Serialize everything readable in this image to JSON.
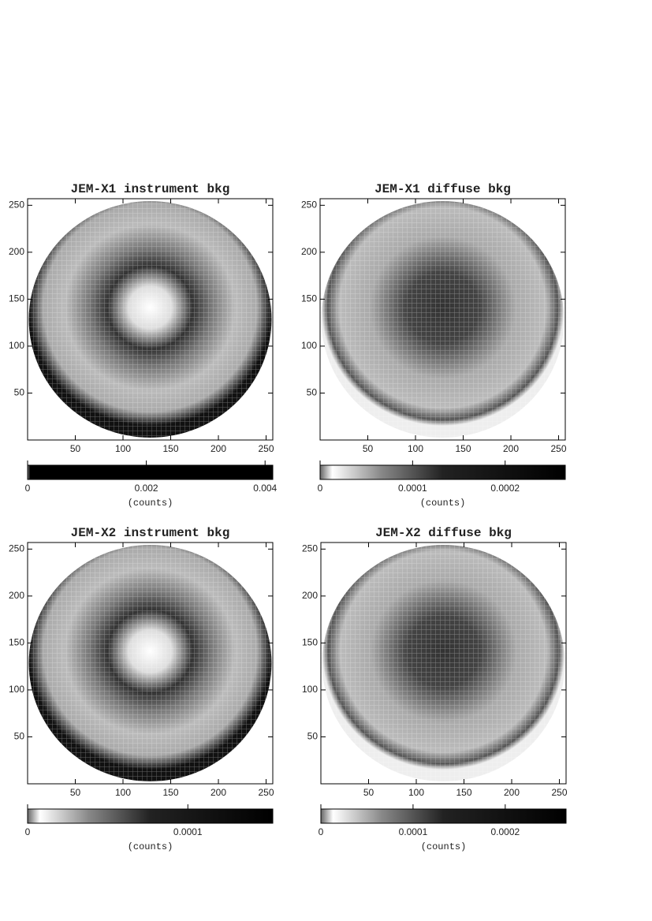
{
  "chart_data": [
    {
      "type": "image",
      "title": "JEM-X1 instrument bkg",
      "xlim": [
        0,
        257
      ],
      "ylim": [
        0,
        257
      ],
      "xticks": [
        50,
        100,
        150,
        200,
        250
      ],
      "yticks": [
        50,
        100,
        150,
        200,
        250
      ],
      "colorbar": {
        "lim": [
          0,
          0.00413
        ],
        "ticks": [
          0,
          0.002,
          0.004
        ],
        "label": "(counts)"
      }
    },
    {
      "type": "image",
      "title": "JEM-X1 diffuse bkg",
      "xlim": [
        0,
        257
      ],
      "ylim": [
        0,
        257
      ],
      "xticks": [
        50,
        100,
        150,
        200,
        250
      ],
      "yticks": [
        50,
        100,
        150,
        200,
        250
      ],
      "colorbar": {
        "lim": [
          0,
          0.000265
        ],
        "ticks": [
          0,
          0.0001,
          0.0002
        ],
        "label": "(counts)"
      }
    },
    {
      "type": "image",
      "title": "JEM-X2 instrument bkg",
      "xlim": [
        0,
        257
      ],
      "ylim": [
        0,
        257
      ],
      "xticks": [
        50,
        100,
        150,
        200,
        250
      ],
      "yticks": [
        50,
        100,
        150,
        200,
        250
      ],
      "colorbar": {
        "lim": [
          0,
          0.000153
        ],
        "ticks": [
          0,
          0.0001
        ],
        "label": "(counts)"
      }
    },
    {
      "type": "image",
      "title": "JEM-X2 diffuse bkg",
      "xlim": [
        0,
        257
      ],
      "ylim": [
        0,
        257
      ],
      "xticks": [
        50,
        100,
        150,
        200,
        250
      ],
      "yticks": [
        50,
        100,
        150,
        200,
        250
      ],
      "colorbar": {
        "lim": [
          0,
          0.000266
        ],
        "ticks": [
          0,
          0.0001,
          0.0002
        ],
        "label": "(counts)"
      }
    }
  ]
}
